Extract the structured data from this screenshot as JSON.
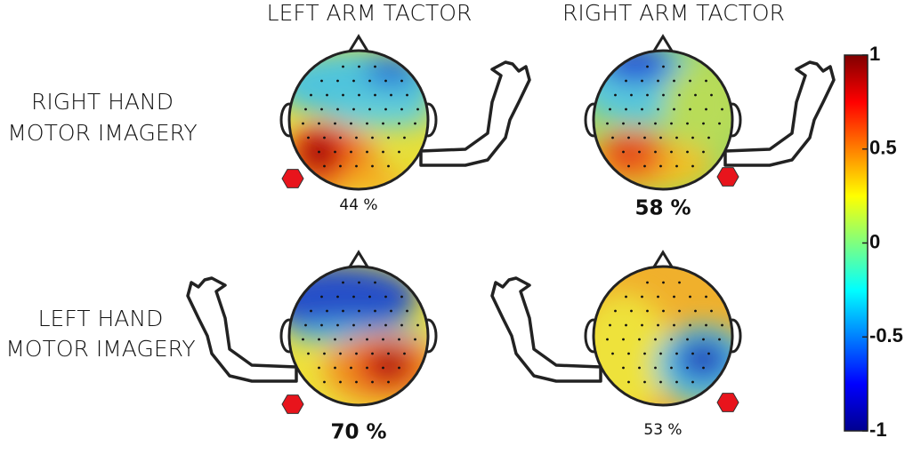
{
  "column_headers": [
    "LEFT ARM TACTOR",
    "RIGHT ARM TACTOR"
  ],
  "row_headers": [
    [
      "RIGHT HAND",
      "MOTOR IMAGERY"
    ],
    [
      "LEFT HAND",
      "MOTOR IMAGERY"
    ]
  ],
  "panels": [
    {
      "accuracy": "44 %"
    },
    {
      "accuracy": "58 %"
    },
    {
      "accuracy": "70 %"
    },
    {
      "accuracy": "53 %"
    }
  ],
  "colorbar": {
    "ticks": [
      1,
      0.5,
      0,
      -0.5,
      -1
    ]
  }
}
